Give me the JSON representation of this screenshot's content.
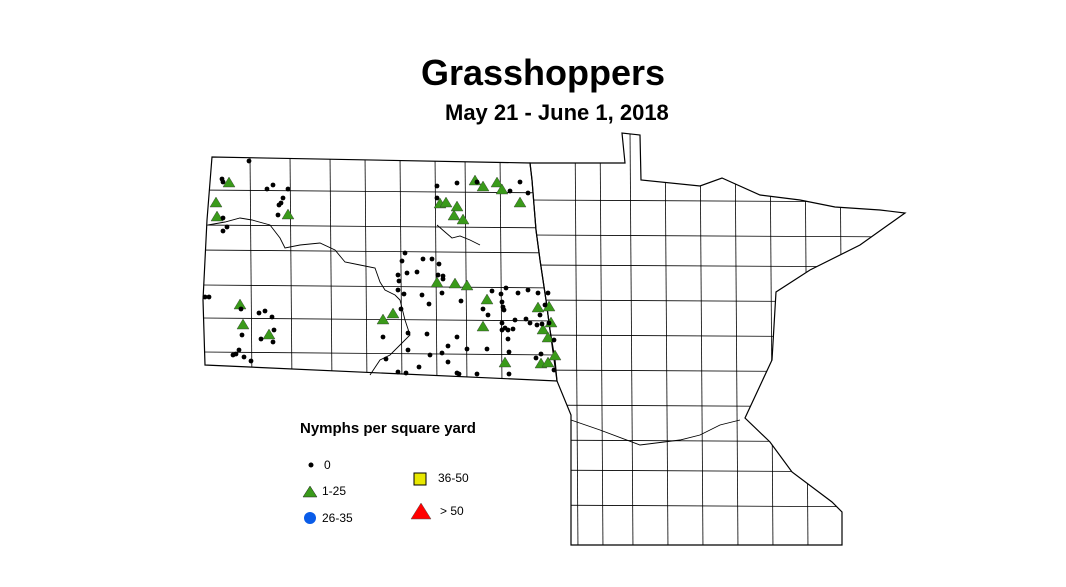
{
  "map": {
    "title": "Grasshoppers",
    "subtitle": "May 21 - June 1, 2018",
    "regions": [
      "North Dakota",
      "Minnesota"
    ]
  },
  "legend": {
    "title": "Nymphs per square yard",
    "items": [
      {
        "label": "0",
        "symbol": "dot",
        "color": "#000000"
      },
      {
        "label": "1-25",
        "symbol": "triangle",
        "color": "#3a9a1a"
      },
      {
        "label": "26-35",
        "symbol": "circle",
        "color": "#0a5ce8"
      },
      {
        "label": "36-50",
        "symbol": "square",
        "color": "#e8e800"
      },
      {
        "label": "> 50",
        "symbol": "triangle",
        "color": "#ff0000"
      }
    ]
  }
}
